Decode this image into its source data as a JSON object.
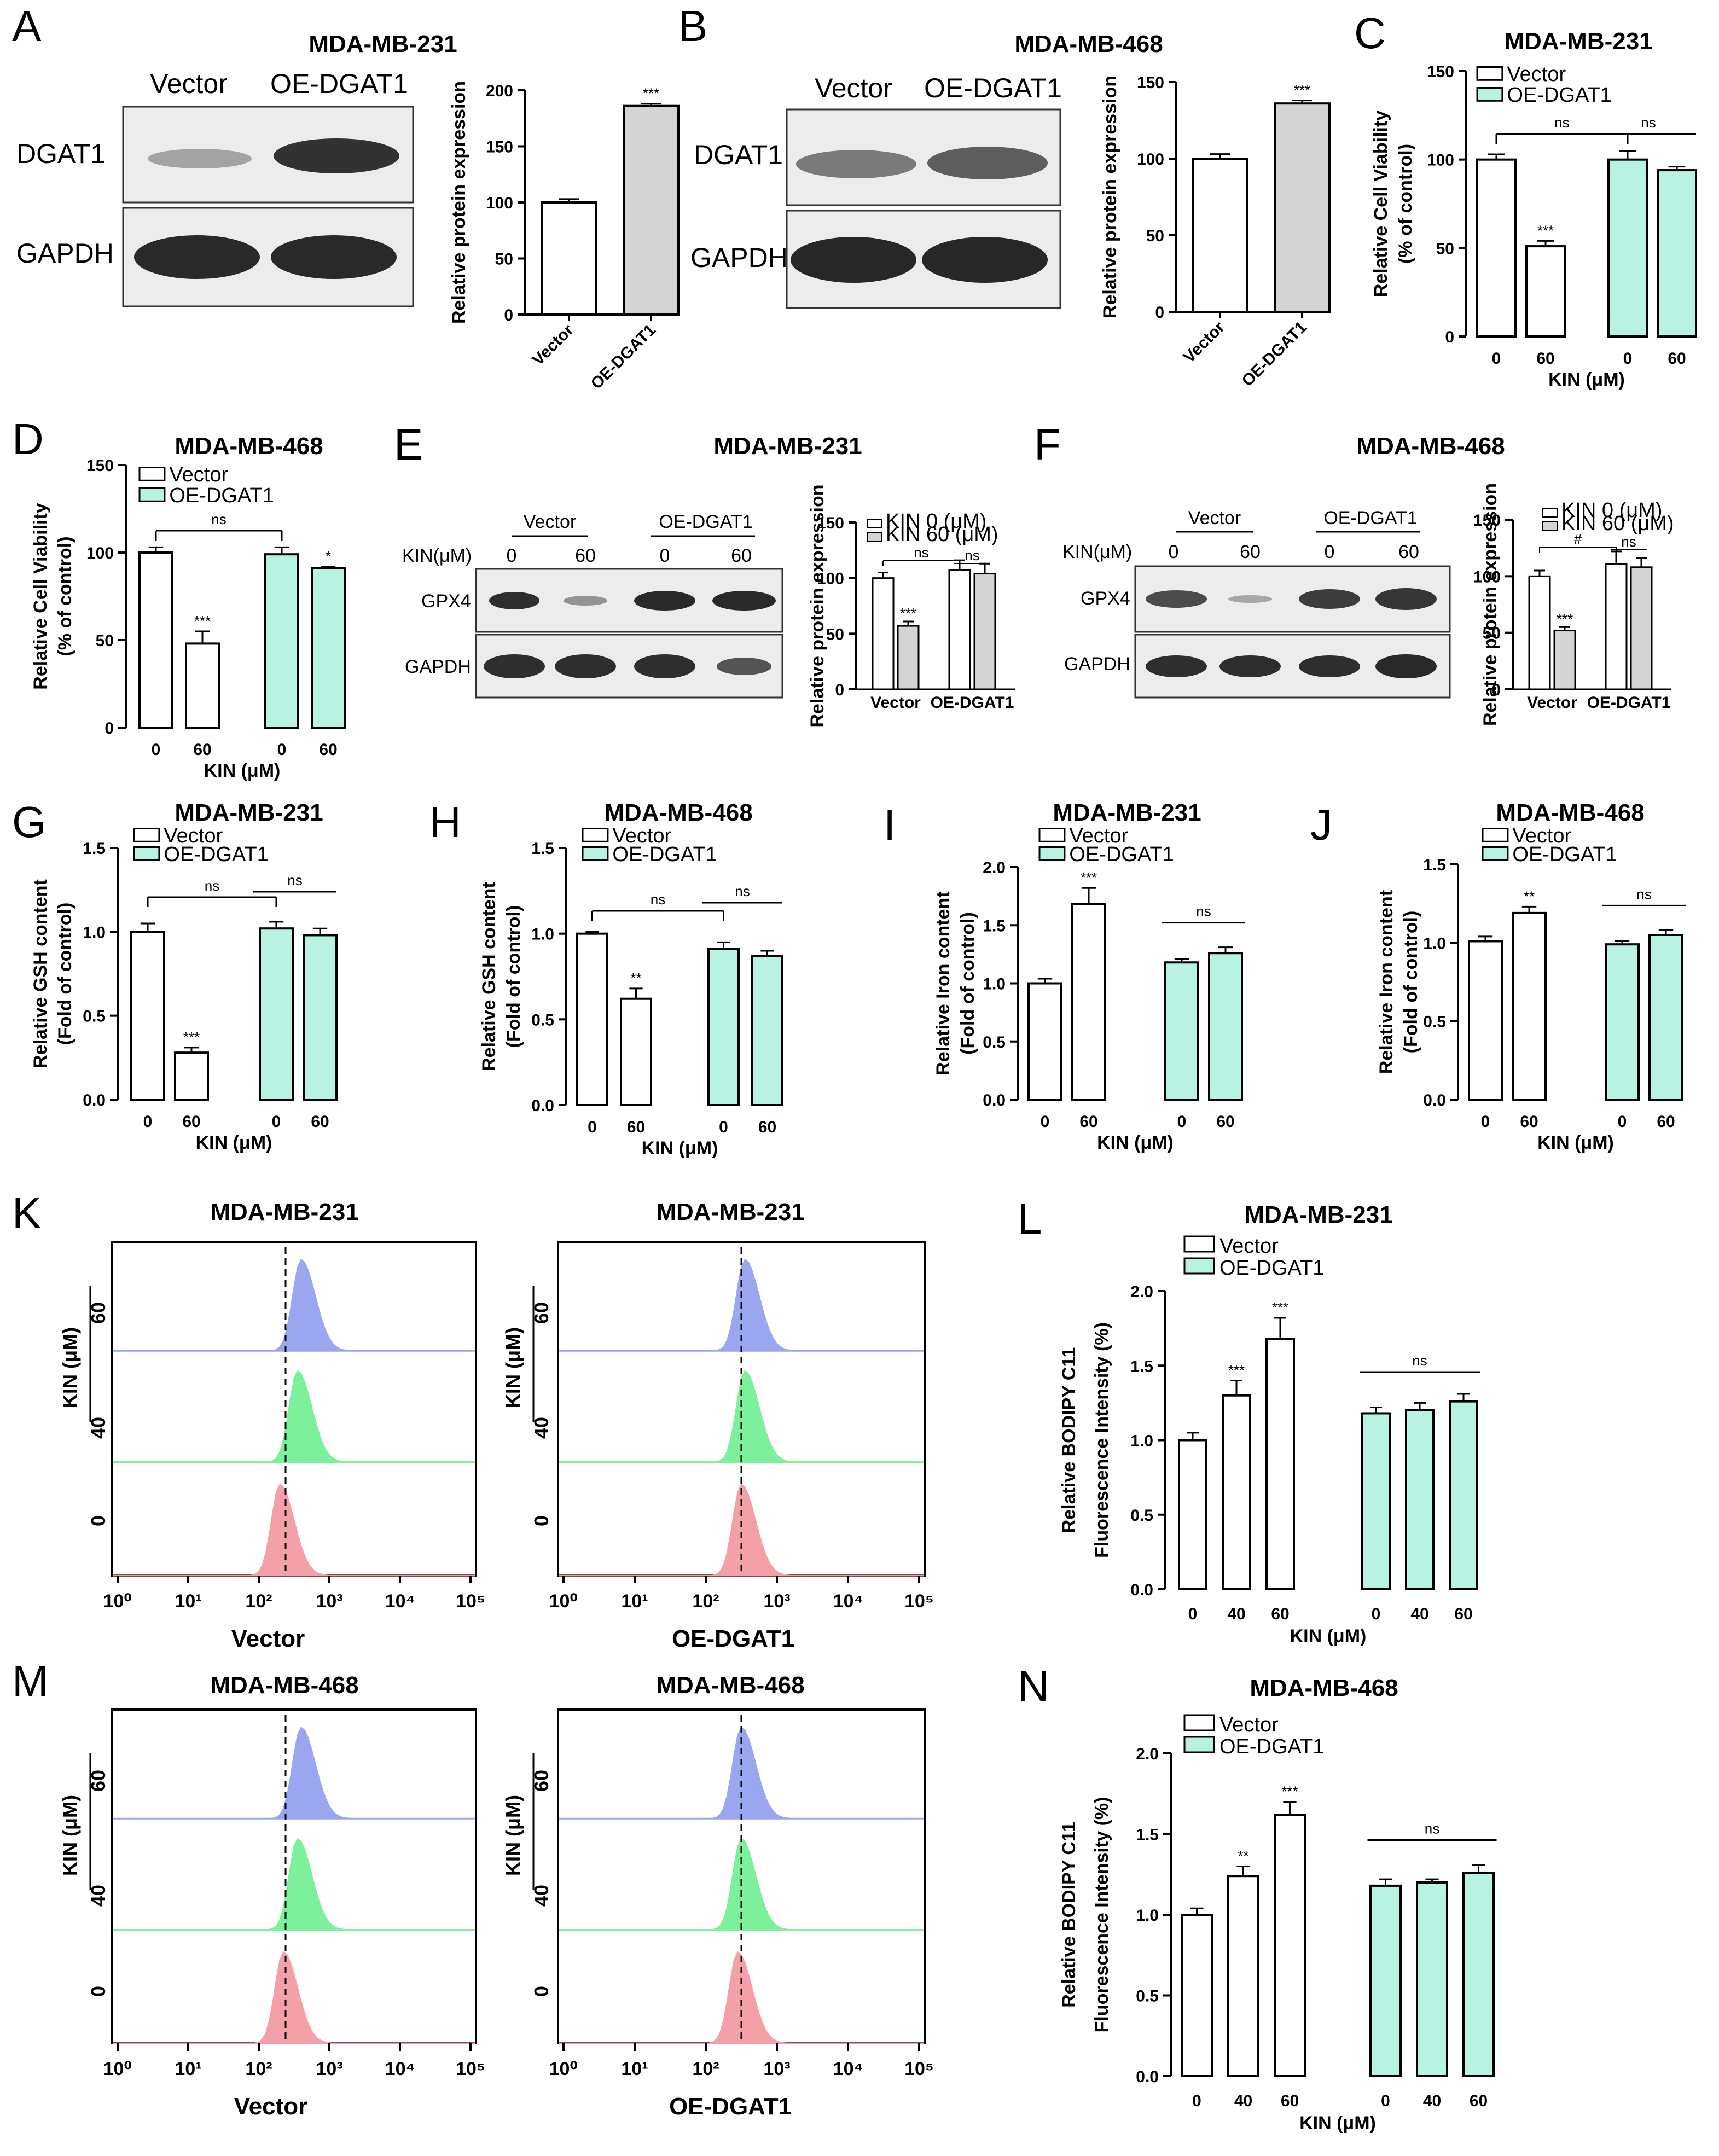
{
  "colors": {
    "vector": "#ffffff",
    "oe": "#b8f2e2",
    "grey": "#d4d4d4",
    "blue": "#9aa6f0",
    "green": "#7cf09a",
    "red": "#f4a0a8"
  },
  "panels": {
    "A": {
      "letter": "A",
      "title": "MDA-MB-231",
      "col1": "Vector",
      "col2": "OE-DGAT1",
      "row1": "DGAT1",
      "row2": "GAPDH"
    },
    "B": {
      "letter": "B",
      "title": "MDA-MB-468",
      "col1": "Vector",
      "col2": "OE-DGAT1",
      "row1": "DGAT1",
      "row2": "GAPDH"
    },
    "E": {
      "letter": "E",
      "title": "MDA-MB-231",
      "kin": "KIN(μM)",
      "col_vector": "Vector",
      "col_oe": "OE-DGAT1",
      "d0a": "0",
      "d60a": "60",
      "d0b": "0",
      "d60b": "60",
      "row1": "GPX4",
      "row2": "GAPDH"
    },
    "F": {
      "letter": "F",
      "title": "MDA-MB-468",
      "kin": "KIN(μM)",
      "col_vector": "Vector",
      "col_oe": "OE-DGAT1",
      "d0a": "0",
      "d60a": "60",
      "d0b": "0",
      "d60b": "60",
      "row1": "GPX4",
      "row2": "GAPDH"
    },
    "K": {
      "letter": "K",
      "title_left": "MDA-MB-231",
      "title_right": "MDA-MB-231",
      "xlabel_left": "Vector",
      "xlabel_right": "OE-DGAT1",
      "ylabel": "KIN (μM)",
      "doses": [
        "60",
        "40",
        "0"
      ]
    },
    "M": {
      "letter": "M",
      "title_left": "MDA-MB-468",
      "title_right": "MDA-MB-468",
      "xlabel_left": "Vector",
      "xlabel_right": "OE-DGAT1",
      "ylabel": "KIN (μM)",
      "doses": [
        "60",
        "40",
        "0"
      ]
    }
  },
  "chart_data": [
    {
      "id": "A-bar",
      "type": "bar",
      "categories": [
        "Vector",
        "OE-DGAT1"
      ],
      "values": [
        100,
        186
      ],
      "errors": [
        3,
        2
      ],
      "ylim": [
        0,
        200
      ],
      "yticks": [
        0,
        50,
        100,
        150,
        200
      ],
      "ylabel": "Relative protein expression",
      "significance": [
        "",
        "***"
      ]
    },
    {
      "id": "B-bar",
      "type": "bar",
      "categories": [
        "Vector",
        "OE-DGAT1"
      ],
      "values": [
        100,
        136
      ],
      "errors": [
        3,
        2
      ],
      "ylim": [
        0,
        150
      ],
      "yticks": [
        0,
        50,
        100,
        150
      ],
      "ylabel": "Relative protein expression",
      "significance": [
        "",
        "***"
      ]
    },
    {
      "id": "C",
      "type": "bar",
      "letter": "C",
      "title": "MDA-MB-231",
      "xlabel": "KIN (μM)",
      "ylabel": [
        "Relative Cell Viability",
        "(% of control)"
      ],
      "ylim": [
        0,
        150
      ],
      "yticks": [
        0,
        50,
        100,
        150
      ],
      "legend": [
        "Vector",
        "OE-DGAT1"
      ],
      "groups": [
        {
          "series": "Vector",
          "doses": [
            "0",
            "60"
          ],
          "values": [
            100,
            51
          ],
          "errors": [
            3,
            3
          ],
          "sig": [
            "",
            "***"
          ]
        },
        {
          "series": "OE-DGAT1",
          "doses": [
            "0",
            "60"
          ],
          "values": [
            100,
            94
          ],
          "errors": [
            5,
            2
          ],
          "sig": [
            "",
            ""
          ]
        }
      ],
      "comparisons": [
        "ns",
        "ns"
      ]
    },
    {
      "id": "D",
      "type": "bar",
      "letter": "D",
      "title": "MDA-MB-468",
      "xlabel": "KIN (μM)",
      "ylabel": [
        "Relative Cell Viability",
        "(% of control)"
      ],
      "ylim": [
        0,
        150
      ],
      "yticks": [
        0,
        50,
        100,
        150
      ],
      "legend": [
        "Vector",
        "OE-DGAT1"
      ],
      "groups": [
        {
          "series": "Vector",
          "doses": [
            "0",
            "60"
          ],
          "values": [
            100,
            48
          ],
          "errors": [
            3,
            7
          ],
          "sig": [
            "",
            "***"
          ]
        },
        {
          "series": "OE-DGAT1",
          "doses": [
            "0",
            "60"
          ],
          "values": [
            99,
            91
          ],
          "errors": [
            4,
            1
          ],
          "sig": [
            "",
            "*"
          ]
        }
      ],
      "comparisons": [
        "ns"
      ]
    },
    {
      "id": "E-bar",
      "type": "bar",
      "ylim": [
        0,
        150
      ],
      "yticks": [
        0,
        50,
        100,
        150
      ],
      "ylabel": "Relative protein expression",
      "legend": [
        "KIN 0 (μM)",
        "KIN 60 (μM)"
      ],
      "categories": [
        "Vector",
        "OE-DGAT1"
      ],
      "series": [
        {
          "name": "KIN 0 (μM)",
          "values": [
            100,
            107
          ],
          "errors": [
            5,
            9
          ]
        },
        {
          "name": "KIN 60 (μM)",
          "values": [
            57,
            104
          ],
          "errors": [
            4,
            9
          ]
        }
      ],
      "sig": [
        "***"
      ],
      "comparisons": [
        "ns",
        "ns"
      ]
    },
    {
      "id": "F-bar",
      "type": "bar",
      "ylim": [
        0,
        150
      ],
      "yticks": [
        0,
        50,
        100,
        150
      ],
      "ylabel": "Relative protein expression",
      "legend": [
        "KIN 0 (μM)",
        "KIN 60 (μM)"
      ],
      "categories": [
        "Vector",
        "OE-DGAT1"
      ],
      "series": [
        {
          "name": "KIN 0 (μM)",
          "values": [
            100,
            111
          ],
          "errors": [
            5,
            11
          ]
        },
        {
          "name": "KIN 60 (μM)",
          "values": [
            52,
            108
          ],
          "errors": [
            3,
            8
          ]
        }
      ],
      "sig": [
        "***"
      ],
      "comparisons": [
        "#",
        "ns"
      ]
    },
    {
      "id": "G",
      "type": "bar",
      "letter": "G",
      "title": "MDA-MB-231",
      "xlabel": "KIN (μM)",
      "ylabel": [
        "Relative GSH content",
        "(Fold of control)"
      ],
      "ylim": [
        0,
        1.5
      ],
      "yticks": [
        "0.0",
        "0.5",
        "1.0",
        "1.5"
      ],
      "legend": [
        "Vector",
        "OE-DGAT1"
      ],
      "groups": [
        {
          "series": "Vector",
          "doses": [
            "0",
            "60"
          ],
          "values": [
            1.0,
            0.28
          ],
          "errors": [
            0.05,
            0.03
          ],
          "sig": [
            "",
            "***"
          ]
        },
        {
          "series": "OE-DGAT1",
          "doses": [
            "0",
            "60"
          ],
          "values": [
            1.02,
            0.98
          ],
          "errors": [
            0.04,
            0.04
          ],
          "sig": [
            "",
            ""
          ]
        }
      ],
      "comparisons": [
        "ns",
        "ns"
      ]
    },
    {
      "id": "H",
      "type": "bar",
      "letter": "H",
      "title": "MDA-MB-468",
      "xlabel": "KIN (μM)",
      "ylabel": [
        "Relative GSH content",
        "(Fold of control)"
      ],
      "ylim": [
        0,
        1.5
      ],
      "yticks": [
        "0.0",
        "0.5",
        "1.0",
        "1.5"
      ],
      "legend": [
        "Vector",
        "OE-DGAT1"
      ],
      "groups": [
        {
          "series": "Vector",
          "doses": [
            "0",
            "60"
          ],
          "values": [
            1.0,
            0.62
          ],
          "errors": [
            0.01,
            0.06
          ],
          "sig": [
            "",
            "**"
          ]
        },
        {
          "series": "OE-DGAT1",
          "doses": [
            "0",
            "60"
          ],
          "values": [
            0.91,
            0.87
          ],
          "errors": [
            0.04,
            0.03
          ],
          "sig": [
            "",
            ""
          ]
        }
      ],
      "comparisons": [
        "ns",
        "ns"
      ]
    },
    {
      "id": "I",
      "type": "bar",
      "letter": "I",
      "title": "MDA-MB-231",
      "xlabel": "KIN (μM)",
      "ylabel": [
        "Relative Iron content",
        "(Fold of control)"
      ],
      "ylim": [
        0,
        2.0
      ],
      "yticks": [
        "0.0",
        "0.5",
        "1.0",
        "1.5",
        "2.0"
      ],
      "legend": [
        "Vector",
        "OE-DGAT1"
      ],
      "groups": [
        {
          "series": "Vector",
          "doses": [
            "0",
            "60"
          ],
          "values": [
            1.0,
            1.68
          ],
          "errors": [
            0.04,
            0.14
          ],
          "sig": [
            "",
            "***"
          ]
        },
        {
          "series": "OE-DGAT1",
          "doses": [
            "0",
            "60"
          ],
          "values": [
            1.18,
            1.26
          ],
          "errors": [
            0.03,
            0.05
          ],
          "sig": [
            "",
            ""
          ]
        }
      ],
      "comparisons": [
        "ns"
      ]
    },
    {
      "id": "J",
      "type": "bar",
      "letter": "J",
      "title": "MDA-MB-468",
      "xlabel": "KIN (μM)",
      "ylabel": [
        "Relative Iron content",
        "(Fold of control)"
      ],
      "ylim": [
        0,
        1.5
      ],
      "yticks": [
        "0.0",
        "0.5",
        "1.0",
        "1.5"
      ],
      "legend": [
        "Vector",
        "OE-DGAT1"
      ],
      "groups": [
        {
          "series": "Vector",
          "doses": [
            "0",
            "60"
          ],
          "values": [
            1.01,
            1.19
          ],
          "errors": [
            0.03,
            0.04
          ],
          "sig": [
            "",
            "**"
          ]
        },
        {
          "series": "OE-DGAT1",
          "doses": [
            "0",
            "60"
          ],
          "values": [
            0.99,
            1.05
          ],
          "errors": [
            0.02,
            0.03
          ],
          "sig": [
            "",
            ""
          ]
        }
      ],
      "comparisons": [
        "ns"
      ]
    },
    {
      "id": "K-flow",
      "type": "histogram",
      "xscale": "log",
      "xticks": [
        "10⁰",
        "10¹",
        "10²",
        "10³",
        "10⁴",
        "10⁵"
      ],
      "left_peaks_log10": [
        2.6,
        2.55,
        2.3
      ],
      "right_peaks_log10": [
        2.55,
        2.55,
        2.5
      ],
      "cutoff_left_log10": 2.38,
      "cutoff_right_log10": 2.5
    },
    {
      "id": "L",
      "type": "bar",
      "letter": "L",
      "title": "MDA-MB-231",
      "xlabel": "KIN (μM)",
      "ylabel": [
        "Relative BODIPY C11",
        "Fluorescence Intensity (%)"
      ],
      "ylim": [
        0,
        2.0
      ],
      "yticks": [
        "0.0",
        "0.5",
        "1.0",
        "1.5",
        "2.0"
      ],
      "legend": [
        "Vector",
        "OE-DGAT1"
      ],
      "groups": [
        {
          "series": "Vector",
          "doses": [
            "0",
            "40",
            "60"
          ],
          "values": [
            1.0,
            1.3,
            1.68
          ],
          "errors": [
            0.05,
            0.1,
            0.14
          ],
          "sig": [
            "",
            "***",
            "***"
          ]
        },
        {
          "series": "OE-DGAT1",
          "doses": [
            "0",
            "40",
            "60"
          ],
          "values": [
            1.18,
            1.2,
            1.26
          ],
          "errors": [
            0.04,
            0.05,
            0.05
          ],
          "sig": [
            "",
            "",
            ""
          ]
        }
      ],
      "comparisons": [
        "ns"
      ]
    },
    {
      "id": "M-flow",
      "type": "histogram",
      "xscale": "log",
      "xticks": [
        "10⁰",
        "10¹",
        "10²",
        "10³",
        "10⁴",
        "10⁵"
      ],
      "left_peaks_log10": [
        2.6,
        2.55,
        2.35
      ],
      "right_peaks_log10": [
        2.5,
        2.5,
        2.45
      ],
      "cutoff_left_log10": 2.38,
      "cutoff_right_log10": 2.5
    },
    {
      "id": "N",
      "type": "bar",
      "letter": "N",
      "title": "MDA-MB-468",
      "xlabel": "KIN (μM)",
      "ylabel": [
        "Relative BODIPY C11",
        "Fluorescence Intensity (%)"
      ],
      "ylim": [
        0,
        2.0
      ],
      "yticks": [
        "0.0",
        "0.5",
        "1.0",
        "1.5",
        "2.0"
      ],
      "legend": [
        "Vector",
        "OE-DGAT1"
      ],
      "groups": [
        {
          "series": "Vector",
          "doses": [
            "0",
            "40",
            "60"
          ],
          "values": [
            1.0,
            1.24,
            1.62
          ],
          "errors": [
            0.04,
            0.06,
            0.08
          ],
          "sig": [
            "",
            "**",
            "***"
          ]
        },
        {
          "series": "OE-DGAT1",
          "doses": [
            "0",
            "40",
            "60"
          ],
          "values": [
            1.18,
            1.2,
            1.26
          ],
          "errors": [
            0.04,
            0.02,
            0.05
          ],
          "sig": [
            "",
            "",
            ""
          ]
        }
      ],
      "comparisons": [
        "ns"
      ]
    }
  ]
}
